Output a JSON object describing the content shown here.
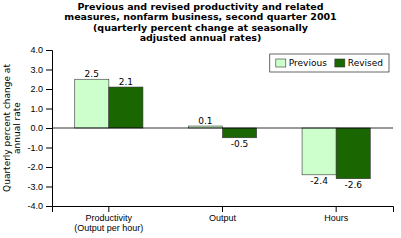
{
  "chart_data": {
    "type": "bar",
    "title": "Previous and revised productivity and related\nmeasures, nonfarm business, second quarter 2001\n(quarterly percent change at seasonally\nadjusted annual rates)",
    "categories": [
      "Productivity\n(Output per hour)",
      "Output",
      "Hours"
    ],
    "series": [
      {
        "name": "Previous",
        "color": "#ccffcc",
        "values": [
          2.5,
          0.1,
          -2.4
        ]
      },
      {
        "name": "Revised",
        "color": "#1a6600",
        "values": [
          2.1,
          -0.5,
          -2.6
        ]
      }
    ],
    "ylabel": "Quarterly percent change at\nannual rate",
    "ylim": [
      -4.0,
      4.0
    ],
    "yticks": [
      {
        "value": -4.0,
        "label": "-4.0"
      },
      {
        "value": -3.0,
        "label": "-3.0"
      },
      {
        "value": -2.0,
        "label": "-2.0"
      },
      {
        "value": -1.0,
        "label": "-1.0"
      },
      {
        "value": 0.0,
        "label": "0.0"
      },
      {
        "value": 1.0,
        "label": "1.0"
      },
      {
        "value": 2.0,
        "label": "2.0"
      },
      {
        "value": 3.0,
        "label": "3.0"
      },
      {
        "value": 4.0,
        "label": "4.0"
      }
    ],
    "data_labels": true,
    "legend": "upper right",
    "grid": false
  }
}
